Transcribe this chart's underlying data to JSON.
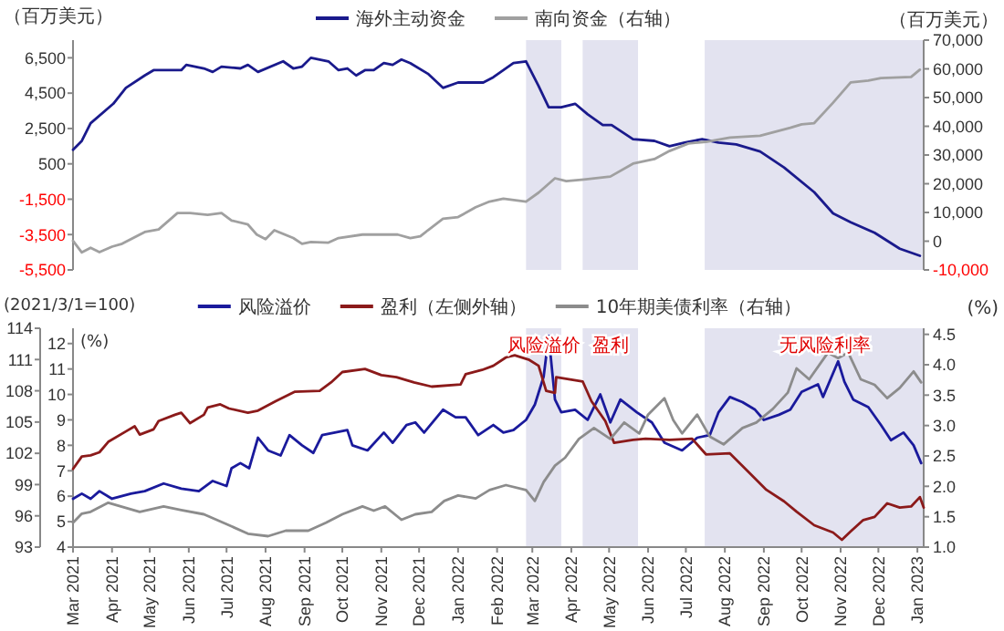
{
  "chart_data": [
    {
      "type": "line",
      "legend": "top",
      "tick_labels": "y",
      "ylabel": "（百万美元）",
      "y2label": "（百万美元）",
      "xlim": [
        "2021-03-01",
        "2023-01-06"
      ],
      "ylim": [
        -5500,
        7500
      ],
      "yticks": [
        {
          "value": -5500,
          "label": "-5,500"
        },
        {
          "value": -3500,
          "label": "-3,500"
        },
        {
          "value": -1500,
          "label": "-1,500"
        },
        500,
        {
          "value": 2500,
          "label": "2,500"
        },
        {
          "value": 4500,
          "label": "4,500"
        },
        {
          "value": 6500,
          "label": "6,500"
        }
      ],
      "y2lim": [
        -10000,
        70000
      ],
      "y2ticks": [
        {
          "value": -10000,
          "label": "-10,000"
        },
        0,
        {
          "value": 10000,
          "label": "10,000"
        },
        {
          "value": 20000,
          "label": "20,000"
        },
        {
          "value": 30000,
          "label": "30,000"
        },
        {
          "value": 40000,
          "label": "40,000"
        },
        {
          "value": 50000,
          "label": "50,000"
        },
        {
          "value": 60000,
          "label": "60,000"
        },
        {
          "value": 70000,
          "label": "70,000"
        }
      ],
      "bands": [
        {
          "axis": "x",
          "from": "2022-02-24",
          "to": "2022-03-24",
          "color": "#e3e3f0"
        },
        {
          "axis": "x",
          "from": "2022-04-10",
          "to": "2022-05-24",
          "color": "#e3e3f0"
        },
        {
          "axis": "x",
          "from": "2022-07-16",
          "to": "2023-01-06",
          "color": "#e3e3f0"
        }
      ],
      "series": [
        {
          "name": "海外主动资金",
          "color": "#1a1a8c",
          "x": [
            "2021-03-01",
            "2021-03-08",
            "2021-03-15",
            "2021-04-02",
            "2021-04-12",
            "2021-04-27",
            "2021-05-04",
            "2021-05-26",
            "2021-05-30",
            "2021-06-13",
            "2021-06-20",
            "2021-06-27",
            "2021-07-12",
            "2021-07-18",
            "2021-07-26",
            "2021-08-15",
            "2021-08-23",
            "2021-08-30",
            "2021-09-06",
            "2021-09-20",
            "2021-09-28",
            "2021-10-05",
            "2021-10-12",
            "2021-10-19",
            "2021-10-26",
            "2021-11-03",
            "2021-11-10",
            "2021-11-17",
            "2021-11-24",
            "2021-12-08",
            "2021-12-20",
            "2022-01-01",
            "2022-01-21",
            "2022-01-29",
            "2022-02-14",
            "2022-02-24",
            "2022-03-06",
            "2022-03-14",
            "2022-03-24",
            "2022-04-04",
            "2022-04-14",
            "2022-04-26",
            "2022-05-03",
            "2022-05-20",
            "2022-06-06",
            "2022-06-18",
            "2022-06-30",
            "2022-07-14",
            "2022-07-27",
            "2022-08-10",
            "2022-08-29",
            "2022-09-17",
            "2022-10-11",
            "2022-10-26",
            "2022-11-09",
            "2022-11-28",
            "2022-12-18",
            "2023-01-03"
          ],
          "values": [
            1300,
            1800,
            2800,
            3900,
            4800,
            5500,
            5800,
            5800,
            6100,
            5900,
            5700,
            6000,
            5900,
            6100,
            5700,
            6300,
            5900,
            6000,
            6500,
            6300,
            5800,
            5900,
            5500,
            5800,
            5800,
            6200,
            6100,
            6400,
            6200,
            5600,
            4800,
            5100,
            5100,
            5400,
            6200,
            6300,
            4900,
            3700,
            3700,
            3900,
            3300,
            2700,
            2700,
            1900,
            1800,
            1500,
            1700,
            1900,
            1700,
            1600,
            1200,
            300,
            -1100,
            -2300,
            -2800,
            -3400,
            -4300,
            -4700
          ]
        },
        {
          "name": "南向资金（右轴）",
          "color": "#a0a0a0",
          "axis": "y2",
          "x": [
            "2021-03-01",
            "2021-03-08",
            "2021-03-15",
            "2021-03-22",
            "2021-04-01",
            "2021-04-09",
            "2021-04-27",
            "2021-05-08",
            "2021-05-23",
            "2021-06-02",
            "2021-06-16",
            "2021-06-27",
            "2021-07-05",
            "2021-07-18",
            "2021-07-25",
            "2021-08-01",
            "2021-08-08",
            "2021-08-23",
            "2021-08-30",
            "2021-09-06",
            "2021-09-20",
            "2021-09-28",
            "2021-10-17",
            "2021-11-14",
            "2021-11-24",
            "2021-12-02",
            "2021-12-08",
            "2021-12-20",
            "2022-01-01",
            "2022-01-15",
            "2022-01-26",
            "2022-02-06",
            "2022-02-24",
            "2022-03-06",
            "2022-03-19",
            "2022-03-28",
            "2022-04-11",
            "2022-05-02",
            "2022-05-20",
            "2022-06-06",
            "2022-06-18",
            "2022-07-03",
            "2022-07-17",
            "2022-08-05",
            "2022-08-29",
            "2022-09-22",
            "2022-10-01",
            "2022-10-11",
            "2022-10-26",
            "2022-11-09",
            "2022-11-23",
            "2022-12-03",
            "2022-12-27",
            "2023-01-03"
          ],
          "values": [
            100,
            -3900,
            -2300,
            -3800,
            -1900,
            -900,
            3200,
            4100,
            9800,
            9800,
            9200,
            9800,
            7200,
            5800,
            2300,
            700,
            3800,
            1100,
            -900,
            -300,
            -500,
            1100,
            2300,
            2300,
            1100,
            1700,
            3800,
            7800,
            8400,
            11800,
            13800,
            14800,
            13800,
            16900,
            21900,
            20900,
            21500,
            22500,
            27000,
            28600,
            31400,
            34000,
            34600,
            36100,
            36700,
            39500,
            40700,
            41100,
            48200,
            55300,
            55900,
            56800,
            57200,
            59700
          ]
        }
      ]
    },
    {
      "type": "line",
      "legend": "top",
      "ylabel": "(2021/3/1=100)",
      "y2label": "(%)",
      "y3label": "(%)",
      "xlim": [
        "2021-03-01",
        "2023-01-06"
      ],
      "xticks": [
        {
          "value": "2021-03-01",
          "label": "Mar 2021"
        },
        {
          "value": "2021-04-01",
          "label": "Apr 2021"
        },
        {
          "value": "2021-05-01",
          "label": "May 2021"
        },
        {
          "value": "2021-06-01",
          "label": "Jun 2021"
        },
        {
          "value": "2021-07-01",
          "label": "Jul 2021"
        },
        {
          "value": "2021-08-01",
          "label": "Aug 2021"
        },
        {
          "value": "2021-09-01",
          "label": "Sep 2021"
        },
        {
          "value": "2021-10-01",
          "label": "Oct 2021"
        },
        {
          "value": "2021-11-01",
          "label": "Nov 2021"
        },
        {
          "value": "2021-12-01",
          "label": "Dec 2021"
        },
        {
          "value": "2022-01-01",
          "label": "Jan 2022"
        },
        {
          "value": "2022-02-01",
          "label": "Feb 2022"
        },
        {
          "value": "2022-03-01",
          "label": "Mar 2022"
        },
        {
          "value": "2022-04-01",
          "label": "Apr 2022"
        },
        {
          "value": "2022-05-01",
          "label": "May 2022"
        },
        {
          "value": "2022-06-01",
          "label": "Jun 2022"
        },
        {
          "value": "2022-07-01",
          "label": "Jul 2022"
        },
        {
          "value": "2022-08-01",
          "label": "Aug 2022"
        },
        {
          "value": "2022-09-01",
          "label": "Sep 2022"
        },
        {
          "value": "2022-10-01",
          "label": "Oct 2022"
        },
        {
          "value": "2022-11-01",
          "label": "Nov 2022"
        },
        {
          "value": "2022-12-01",
          "label": "Dec 2022"
        },
        {
          "value": "2023-01-01",
          "label": "Jan 2023"
        }
      ],
      "ylim": [
        93,
        114
      ],
      "yticks": [
        93,
        96,
        99,
        102,
        105,
        108,
        111,
        114
      ],
      "y3lim": [
        4,
        12.6
      ],
      "y3ticks": [
        4,
        5,
        6,
        7,
        8,
        9,
        10,
        11,
        12
      ],
      "y2lim": [
        1,
        4.6
      ],
      "y2ticks": [
        {
          "value": 1,
          "label": "1.0"
        },
        1.5,
        {
          "value": 2,
          "label": "2.0"
        },
        2.5,
        {
          "value": 3,
          "label": "3.0"
        },
        3.5,
        {
          "value": 4,
          "label": "4.0"
        },
        4.5
      ],
      "bands": [
        {
          "axis": "x",
          "from": "2022-02-24",
          "to": "2022-03-24",
          "color": "#e3e3f0"
        },
        {
          "axis": "x",
          "from": "2022-04-10",
          "to": "2022-05-24",
          "color": "#e3e3f0"
        },
        {
          "axis": "x",
          "from": "2022-07-16",
          "to": "2023-01-06",
          "color": "#e3e3f0"
        }
      ],
      "annotations": [
        "风险溢价",
        "盈利",
        "无风险利率"
      ],
      "series": [
        {
          "name": "风险溢价",
          "color": "#1a1a9c",
          "axis": "y3",
          "x": [
            "2021-03-01",
            "2021-03-08",
            "2021-03-15",
            "2021-03-22",
            "2021-04-01",
            "2021-04-16",
            "2021-04-27",
            "2021-05-12",
            "2021-05-26",
            "2021-06-09",
            "2021-06-20",
            "2021-07-01",
            "2021-07-05",
            "2021-07-12",
            "2021-07-19",
            "2021-07-26",
            "2021-08-03",
            "2021-08-13",
            "2021-08-20",
            "2021-08-30",
            "2021-09-08",
            "2021-09-15",
            "2021-09-25",
            "2021-10-05",
            "2021-10-09",
            "2021-10-21",
            "2021-11-03",
            "2021-11-10",
            "2021-11-21",
            "2021-11-28",
            "2021-12-05",
            "2021-12-20",
            "2021-12-30",
            "2022-01-07",
            "2022-01-17",
            "2022-01-29",
            "2022-02-06",
            "2022-02-14",
            "2022-02-24",
            "2022-03-03",
            "2022-03-10",
            "2022-03-14",
            "2022-03-19",
            "2022-03-24",
            "2022-04-04",
            "2022-04-14",
            "2022-04-24",
            "2022-05-02",
            "2022-05-10",
            "2022-05-23",
            "2022-06-04",
            "2022-06-14",
            "2022-06-28",
            "2022-07-10",
            "2022-07-20",
            "2022-07-27",
            "2022-08-05",
            "2022-08-15",
            "2022-08-25",
            "2022-09-01",
            "2022-09-13",
            "2022-09-22",
            "2022-10-01",
            "2022-10-14",
            "2022-10-18",
            "2022-10-30",
            "2022-11-04",
            "2022-11-11",
            "2022-11-23",
            "2022-12-03",
            "2022-12-11",
            "2022-12-21",
            "2022-12-29",
            "2023-01-04"
          ],
          "values": [
            5.9,
            6.1,
            5.9,
            6.2,
            5.9,
            6.1,
            6.2,
            6.5,
            6.3,
            6.2,
            6.6,
            6.4,
            7.1,
            7.3,
            7.1,
            8.3,
            7.8,
            7.6,
            8.4,
            8.0,
            7.7,
            8.4,
            8.5,
            8.6,
            8.0,
            7.8,
            8.5,
            8.1,
            8.8,
            8.9,
            8.5,
            9.4,
            9.1,
            9.1,
            8.4,
            8.8,
            8.5,
            8.6,
            9.0,
            9.6,
            10.7,
            12.3,
            9.8,
            9.3,
            9.4,
            9.0,
            10.0,
            8.9,
            9.8,
            9.3,
            8.9,
            8.1,
            7.8,
            8.3,
            8.4,
            9.3,
            9.9,
            9.7,
            9.4,
            9.0,
            9.2,
            9.4,
            10.1,
            10.4,
            9.9,
            11.3,
            10.5,
            9.8,
            9.5,
            8.8,
            8.2,
            8.5,
            8.0,
            7.3
          ]
        },
        {
          "name": "盈利（左侧外轴）",
          "color": "#8b1a1a",
          "x": [
            "2021-03-01",
            "2021-03-08",
            "2021-03-15",
            "2021-03-22",
            "2021-03-29",
            "2021-04-12",
            "2021-04-19",
            "2021-04-23",
            "2021-05-04",
            "2021-05-08",
            "2021-05-21",
            "2021-05-26",
            "2021-06-02",
            "2021-06-13",
            "2021-06-16",
            "2021-06-26",
            "2021-07-03",
            "2021-07-18",
            "2021-07-26",
            "2021-08-09",
            "2021-08-24",
            "2021-09-13",
            "2021-09-22",
            "2021-10-01",
            "2021-10-19",
            "2021-11-01",
            "2021-11-13",
            "2021-11-27",
            "2021-12-11",
            "2022-01-03",
            "2022-01-07",
            "2022-01-20",
            "2022-01-29",
            "2022-02-08",
            "2022-02-15",
            "2022-02-26",
            "2022-03-06",
            "2022-03-12",
            "2022-03-19",
            "2022-03-20",
            "2022-04-10",
            "2022-04-17",
            "2022-04-28",
            "2022-05-05",
            "2022-05-20",
            "2022-05-30",
            "2022-06-18",
            "2022-07-06",
            "2022-07-17",
            "2022-08-05",
            "2022-08-19",
            "2022-09-03",
            "2022-09-17",
            "2022-09-27",
            "2022-10-11",
            "2022-10-26",
            "2022-11-02",
            "2022-11-09",
            "2022-11-19",
            "2022-11-28",
            "2022-12-08",
            "2022-12-18",
            "2022-12-27",
            "2023-01-03",
            "2023-01-06"
          ],
          "values": [
            100.5,
            101.7,
            101.8,
            102.1,
            103.1,
            104.1,
            104.6,
            103.8,
            104.3,
            105.1,
            105.7,
            105.9,
            104.9,
            105.7,
            106.4,
            106.7,
            106.3,
            105.9,
            106.1,
            107.0,
            107.9,
            108.0,
            108.8,
            109.8,
            110.1,
            109.5,
            109.3,
            108.8,
            108.4,
            108.6,
            109.6,
            110.0,
            110.4,
            111.2,
            111.4,
            111.0,
            110.4,
            108.0,
            107.8,
            109.3,
            108.9,
            107.0,
            105.1,
            103.0,
            103.3,
            103.4,
            103.3,
            103.4,
            101.9,
            102.0,
            100.3,
            98.5,
            97.4,
            96.4,
            95.1,
            94.4,
            93.7,
            94.5,
            95.6,
            95.9,
            97.2,
            96.8,
            96.9,
            97.8,
            96.8
          ]
        },
        {
          "name": "10年期美债利率（右轴）",
          "color": "#8c8c8c",
          "axis": "y2",
          "x": [
            "2021-03-01",
            "2021-03-08",
            "2021-03-15",
            "2021-03-29",
            "2021-04-08",
            "2021-04-23",
            "2021-05-12",
            "2021-05-26",
            "2021-06-13",
            "2021-07-03",
            "2021-07-18",
            "2021-08-03",
            "2021-08-17",
            "2021-09-04",
            "2021-09-18",
            "2021-10-01",
            "2021-10-17",
            "2021-10-26",
            "2021-11-04",
            "2021-11-17",
            "2021-11-28",
            "2021-12-11",
            "2021-12-21",
            "2022-01-01",
            "2022-01-15",
            "2022-01-26",
            "2022-02-08",
            "2022-02-24",
            "2022-03-03",
            "2022-03-10",
            "2022-03-19",
            "2022-03-27",
            "2022-04-07",
            "2022-04-19",
            "2022-05-02",
            "2022-05-13",
            "2022-05-25",
            "2022-06-01",
            "2022-06-14",
            "2022-06-21",
            "2022-06-28",
            "2022-07-10",
            "2022-07-20",
            "2022-07-31",
            "2022-08-15",
            "2022-08-26",
            "2022-09-08",
            "2022-09-20",
            "2022-09-27",
            "2022-10-07",
            "2022-10-22",
            "2022-10-30",
            "2022-11-07",
            "2022-11-17",
            "2022-11-28",
            "2022-12-08",
            "2022-12-18",
            "2022-12-29",
            "2023-01-04"
          ],
          "values": [
            1.4,
            1.55,
            1.58,
            1.73,
            1.67,
            1.58,
            1.67,
            1.61,
            1.54,
            1.36,
            1.22,
            1.18,
            1.27,
            1.27,
            1.4,
            1.54,
            1.67,
            1.6,
            1.67,
            1.45,
            1.54,
            1.58,
            1.76,
            1.85,
            1.8,
            1.94,
            2.02,
            1.94,
            1.76,
            2.07,
            2.34,
            2.47,
            2.78,
            2.96,
            2.78,
            3.05,
            2.87,
            3.18,
            3.45,
            3.09,
            2.87,
            3.18,
            2.82,
            2.69,
            2.96,
            3.05,
            3.27,
            3.54,
            3.94,
            3.76,
            4.2,
            4.11,
            4.2,
            3.76,
            3.67,
            3.45,
            3.62,
            3.89,
            3.71
          ]
        }
      ]
    }
  ]
}
